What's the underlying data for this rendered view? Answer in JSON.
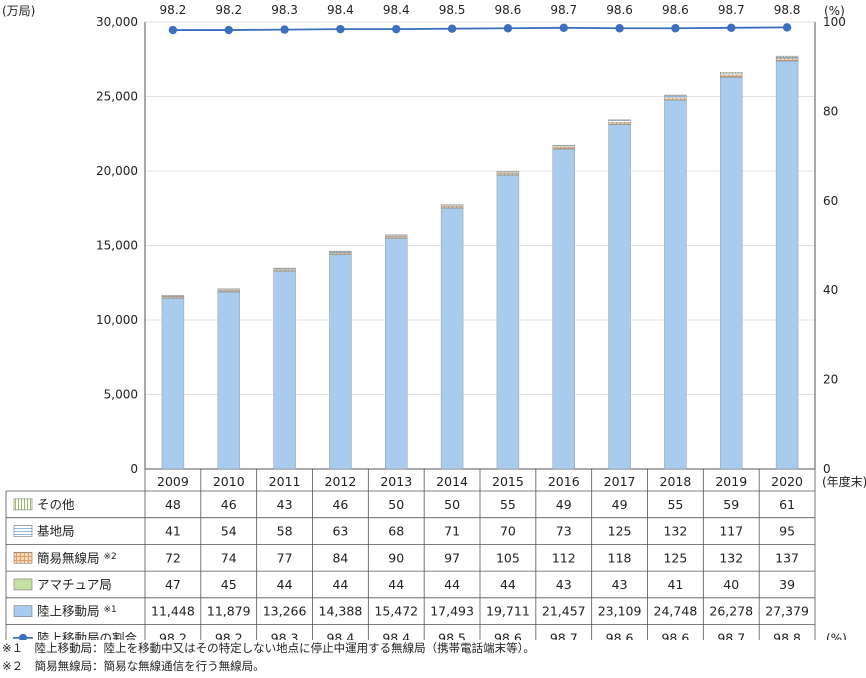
{
  "chart_data": {
    "type": "bar",
    "stacked": true,
    "categories": [
      "2009",
      "2010",
      "2011",
      "2012",
      "2013",
      "2014",
      "2015",
      "2016",
      "2017",
      "2018",
      "2019",
      "2020"
    ],
    "y_unit_label": "(万局)",
    "y2_unit_label": "(%)",
    "x_unit_label": "(年度末)",
    "ylim": [
      0,
      30000
    ],
    "y_ticks": [
      "0",
      "5,000",
      "10,000",
      "15,000",
      "20,000",
      "25,000",
      "30,000"
    ],
    "y2lim": [
      0,
      100
    ],
    "y2_ticks": [
      "0",
      "20",
      "40",
      "60",
      "80",
      "100"
    ],
    "series": [
      {
        "name": "陸上移動局",
        "note_mark": "※1",
        "color": "#a8cbee",
        "pattern": "solid",
        "values": [
          11448,
          11879,
          13266,
          14388,
          15472,
          17493,
          19711,
          21457,
          23109,
          24748,
          26278,
          27379
        ],
        "labels": [
          "11,448",
          "11,879",
          "13,266",
          "14,388",
          "15,472",
          "17,493",
          "19,711",
          "21,457",
          "23,109",
          "24,748",
          "26,278",
          "27,379"
        ]
      },
      {
        "name": "アマチュア局",
        "note_mark": "",
        "color": "#c6e0a4",
        "pattern": "solid",
        "values": [
          47,
          45,
          44,
          44,
          44,
          44,
          44,
          43,
          43,
          41,
          40,
          39
        ],
        "labels": [
          "47",
          "45",
          "44",
          "44",
          "44",
          "44",
          "44",
          "43",
          "43",
          "41",
          "40",
          "39"
        ]
      },
      {
        "name": "簡易無線局",
        "note_mark": "※2",
        "color": "#f3c49a",
        "pattern": "grid",
        "values": [
          72,
          74,
          77,
          84,
          90,
          97,
          105,
          112,
          118,
          125,
          132,
          137
        ],
        "labels": [
          "72",
          "74",
          "77",
          "84",
          "90",
          "97",
          "105",
          "112",
          "118",
          "125",
          "132",
          "137"
        ]
      },
      {
        "name": "基地局",
        "note_mark": "",
        "color": "#b9d4f0",
        "pattern": "hlines",
        "values": [
          41,
          54,
          58,
          63,
          68,
          71,
          70,
          73,
          125,
          132,
          117,
          95
        ],
        "labels": [
          "41",
          "54",
          "58",
          "63",
          "68",
          "71",
          "70",
          "73",
          "125",
          "132",
          "117",
          "95"
        ]
      },
      {
        "name": "その他",
        "note_mark": "",
        "color": "#c9e3a8",
        "pattern": "vlines",
        "values": [
          48,
          46,
          43,
          46,
          50,
          50,
          55,
          49,
          49,
          55,
          59,
          61
        ],
        "labels": [
          "48",
          "46",
          "43",
          "46",
          "50",
          "50",
          "55",
          "49",
          "49",
          "55",
          "59",
          "61"
        ]
      }
    ],
    "line_series": {
      "name": "陸上移動局の割合",
      "axis": "right",
      "unit": "(%)",
      "color": "#3c6fbf",
      "values": [
        98.2,
        98.2,
        98.3,
        98.4,
        98.4,
        98.5,
        98.6,
        98.7,
        98.6,
        98.6,
        98.7,
        98.8
      ],
      "labels": [
        "98.2",
        "98.2",
        "98.3",
        "98.4",
        "98.4",
        "98.5",
        "98.6",
        "98.7",
        "98.6",
        "98.6",
        "98.7",
        "98.8"
      ]
    }
  },
  "notes": [
    "※１　陸上移動局：陸上を移動中又はその特定しない地点に停止中運用する無線局（携帯電話端末等）。",
    "※２　簡易無線局：簡易な無線通信を行う無線局。"
  ]
}
